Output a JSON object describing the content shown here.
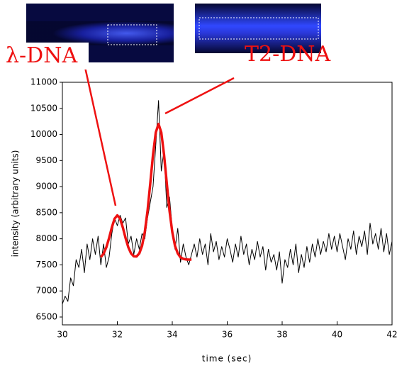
{
  "chart_data": {
    "type": "line",
    "xlabel": "time (sec)",
    "ylabel": "intensity (arbitrary units)",
    "xlim": [
      30,
      42
    ],
    "ylim": [
      6350,
      11000
    ],
    "xticks": [
      30,
      32,
      34,
      36,
      38,
      40,
      42
    ],
    "yticks": [
      6500,
      7000,
      7500,
      8000,
      8500,
      9000,
      9500,
      10000,
      10500,
      11000
    ],
    "annotations": [
      "λ-DNA",
      "T2-DNA"
    ],
    "series": [
      {
        "color": "#000000",
        "x": [
          30.0,
          30.1,
          30.2,
          30.3,
          30.4,
          30.5,
          30.6,
          30.7,
          30.8,
          30.9,
          31.0,
          31.1,
          31.2,
          31.3,
          31.4,
          31.5,
          31.6,
          31.7,
          31.8,
          31.9,
          32.0,
          32.1,
          32.2,
          32.3,
          32.4,
          32.5,
          32.6,
          32.7,
          32.8,
          32.9,
          33.0,
          33.1,
          33.2,
          33.3,
          33.4,
          33.5,
          33.6,
          33.7,
          33.8,
          33.9,
          34.0,
          34.1,
          34.2,
          34.3,
          34.4,
          34.5,
          34.6,
          34.7,
          34.8,
          34.9,
          35.0,
          35.1,
          35.2,
          35.3,
          35.4,
          35.5,
          35.6,
          35.7,
          35.8,
          35.9,
          36.0,
          36.1,
          36.2,
          36.3,
          36.4,
          36.5,
          36.6,
          36.7,
          36.8,
          36.9,
          37.0,
          37.1,
          37.2,
          37.3,
          37.4,
          37.5,
          37.6,
          37.7,
          37.8,
          37.9,
          38.0,
          38.1,
          38.2,
          38.3,
          38.4,
          38.5,
          38.6,
          38.7,
          38.8,
          38.9,
          39.0,
          39.1,
          39.2,
          39.3,
          39.4,
          39.5,
          39.6,
          39.7,
          39.8,
          39.9,
          40.0,
          40.1,
          40.2,
          40.3,
          40.4,
          40.5,
          40.6,
          40.7,
          40.8,
          40.9,
          41.0,
          41.1,
          41.2,
          41.3,
          41.4,
          41.5,
          41.6,
          41.7,
          41.8,
          41.9,
          42.0
        ],
        "values": [
          6750,
          6900,
          6800,
          7250,
          7100,
          7600,
          7450,
          7800,
          7350,
          7900,
          7600,
          8000,
          7700,
          8050,
          7500,
          7900,
          7450,
          7650,
          8100,
          8400,
          8250,
          8450,
          8300,
          8400,
          7900,
          8050,
          7700,
          8000,
          7800,
          8100,
          8000,
          8400,
          8700,
          9000,
          9800,
          10650,
          9300,
          9700,
          8600,
          8800,
          8200,
          7800,
          8200,
          7550,
          7900,
          7650,
          7500,
          7700,
          7900,
          7650,
          8000,
          7700,
          7900,
          7500,
          8100,
          7750,
          7950,
          7600,
          7850,
          7650,
          8000,
          7800,
          7550,
          7900,
          7650,
          8050,
          7700,
          7900,
          7500,
          7800,
          7600,
          7950,
          7650,
          7850,
          7400,
          7800,
          7550,
          7700,
          7400,
          7750,
          7150,
          7600,
          7450,
          7800,
          7500,
          7900,
          7350,
          7700,
          7450,
          7850,
          7550,
          7900,
          7650,
          8000,
          7700,
          7950,
          7750,
          8100,
          7800,
          8050,
          7750,
          8100,
          7850,
          7600,
          8000,
          7800,
          8150,
          7700,
          8050,
          7850,
          8150,
          7700,
          8300,
          7900,
          8100,
          7800,
          8200,
          7750,
          8100,
          7700,
          7950
        ]
      },
      {
        "color": "#ee1111",
        "x": [
          31.4,
          31.5,
          31.6,
          31.7,
          31.8,
          31.9,
          32.0,
          32.1,
          32.2,
          32.3,
          32.4,
          32.5,
          32.6,
          32.7,
          32.8,
          32.9,
          33.0,
          33.1,
          33.2,
          33.3,
          33.4,
          33.5,
          33.6,
          33.7,
          33.8,
          33.9,
          34.0,
          34.1,
          34.2,
          34.3,
          34.4,
          34.5,
          34.6,
          34.7
        ],
        "values": [
          7648,
          7715,
          7836,
          8014,
          8217,
          8385,
          8450,
          8385,
          8217,
          8014,
          7837,
          7719,
          7663,
          7661,
          7720,
          7864,
          8130,
          8537,
          9066,
          9614,
          10039,
          10200,
          10039,
          9614,
          9066,
          8537,
          8130,
          7864,
          7720,
          7644,
          7615,
          7604,
          7601,
          7600
        ]
      }
    ]
  }
}
